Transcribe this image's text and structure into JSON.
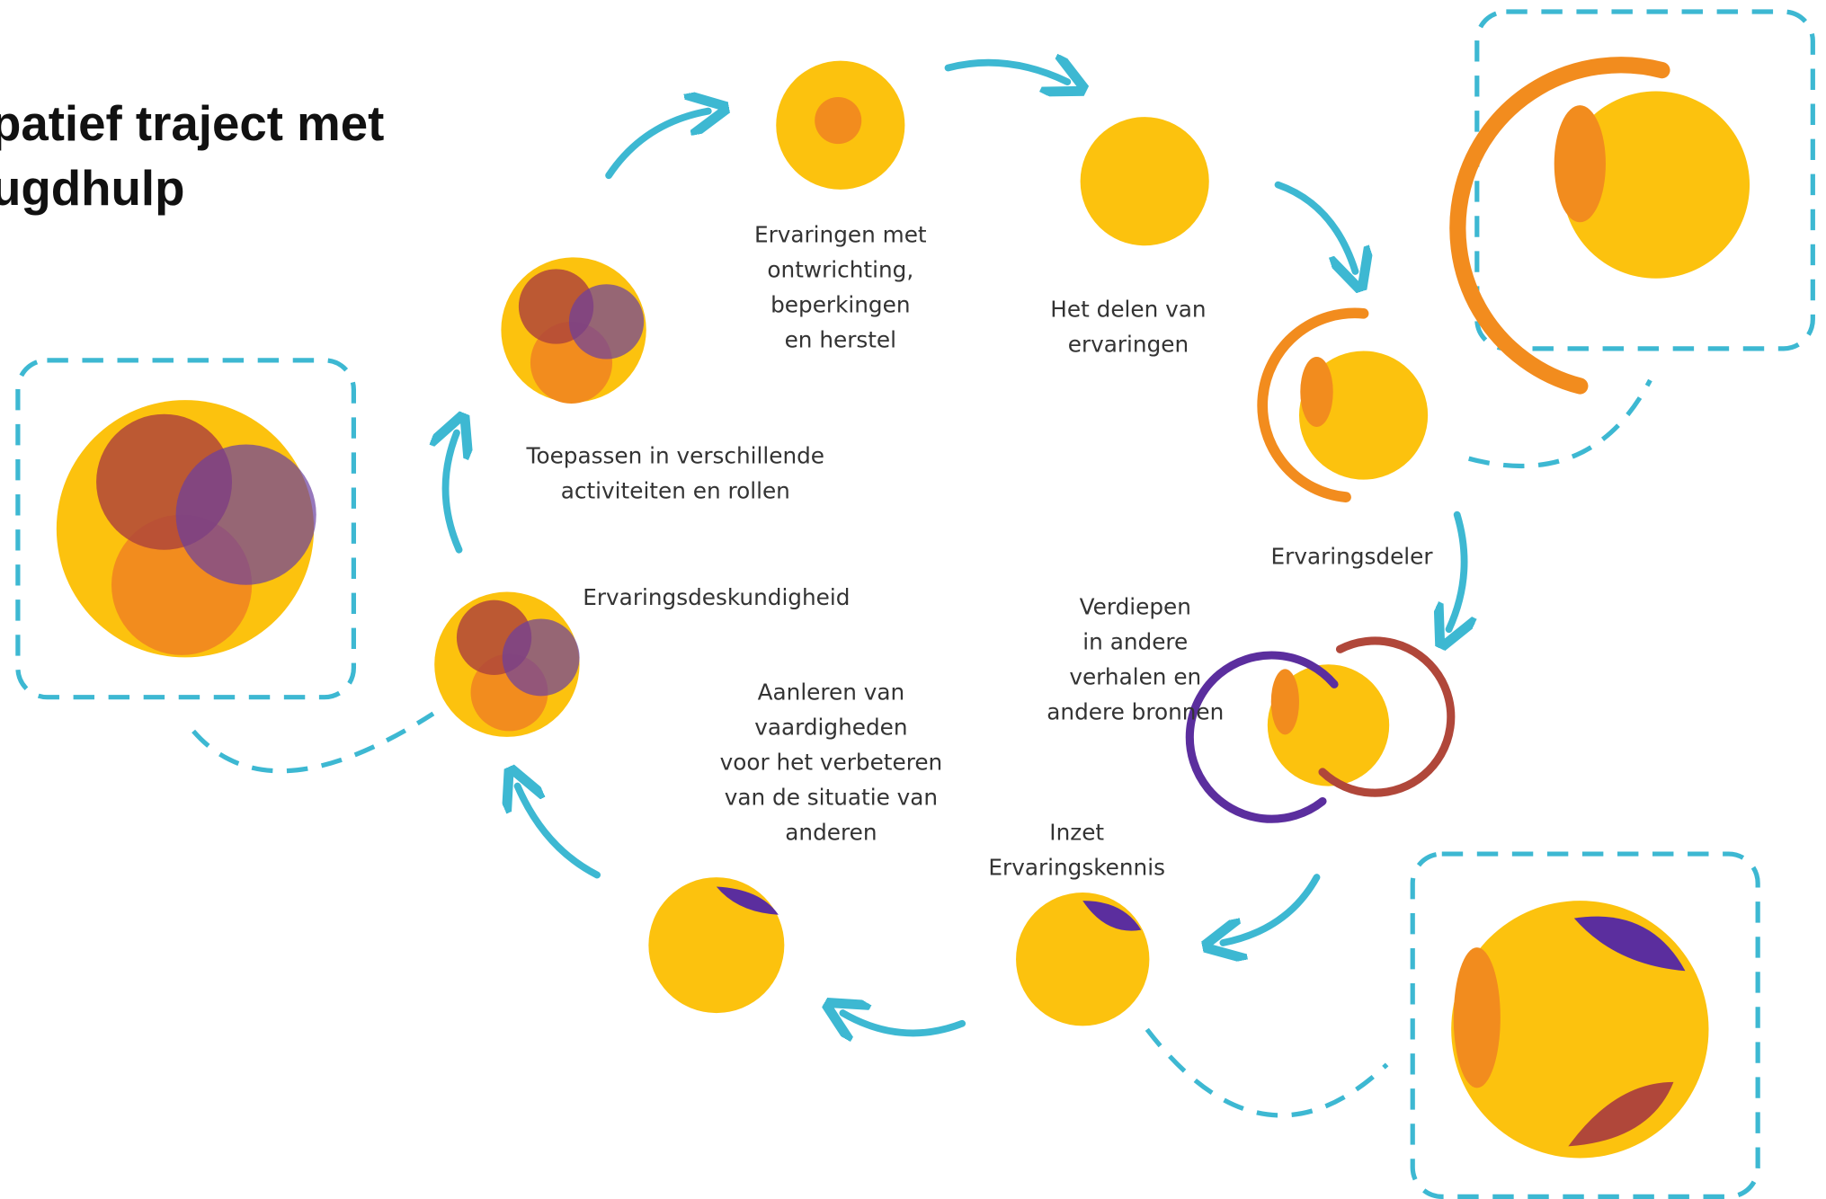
{
  "title": [
    "patief traject met",
    "ugdhulp"
  ],
  "steps": [
    {
      "label": [
        "Ervaringen met",
        "ontwrichting,",
        "beperkingen",
        "en herstel"
      ]
    },
    {
      "label": [
        "Het delen van",
        "ervaringen"
      ]
    },
    {
      "label": [
        "Ervaringsdeler"
      ]
    },
    {
      "label": [
        "Verdiepen",
        "in andere",
        "verhalen en",
        "andere bronnen"
      ]
    },
    {
      "label": [
        "Inzet",
        "Ervaringskennis"
      ]
    },
    {
      "label": [
        "Aanleren van",
        "vaardigheden",
        "voor het verbeteren",
        "van de situatie van",
        "anderen"
      ]
    },
    {
      "label": [
        "Ervaringsdeskundigheid"
      ]
    },
    {
      "label": [
        "Toepassen in verschillende",
        "activiteiten en rollen"
      ]
    }
  ]
}
